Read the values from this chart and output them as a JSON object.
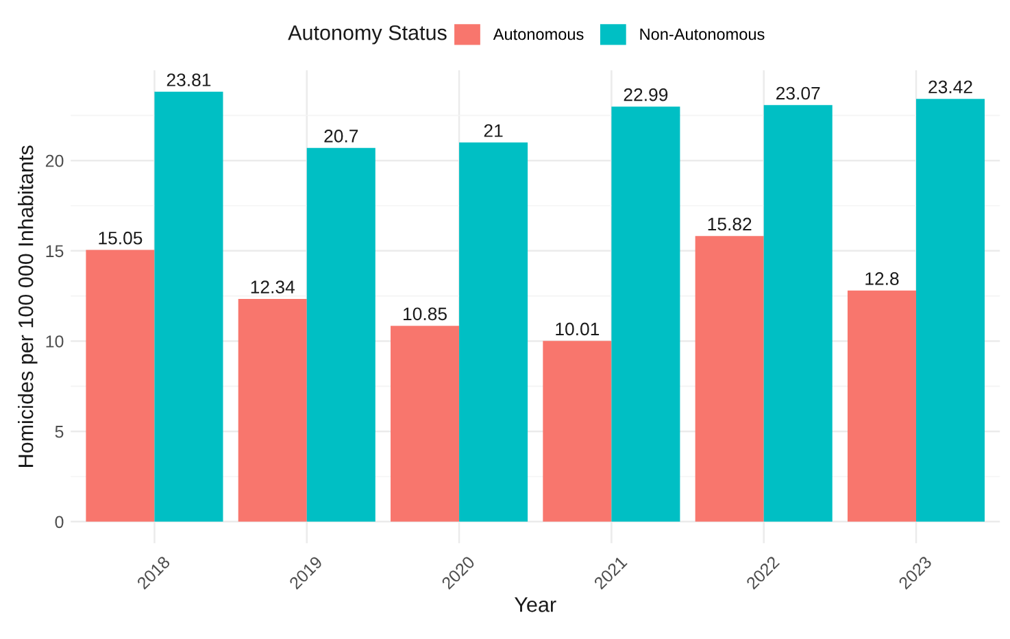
{
  "chart_data": {
    "type": "bar",
    "xlabel": "Year",
    "ylabel": "Homicides per 100 000 Inhabitants",
    "legend_title": "Autonomy Status",
    "categories": [
      "2018",
      "2019",
      "2020",
      "2021",
      "2022",
      "2023"
    ],
    "series": [
      {
        "name": "Autonomous",
        "color": "#f8766d",
        "values": [
          15.05,
          12.34,
          10.85,
          10.01,
          15.82,
          12.8
        ]
      },
      {
        "name": "Non-Autonomous",
        "color": "#00bfc4",
        "values": [
          23.81,
          20.7,
          21,
          22.99,
          23.07,
          23.42
        ]
      }
    ],
    "ylim": [
      -1.19,
      25.0
    ],
    "yticks": [
      0,
      {
        "value": 2.5,
        "label": null
      },
      5,
      {
        "value": 7.5,
        "label": null
      },
      10,
      {
        "value": 12.5,
        "label": null
      },
      15,
      {
        "value": 17.5,
        "label": null
      },
      20,
      {
        "value": 22.5,
        "label": null
      }
    ],
    "data_labels": true,
    "grid": true,
    "legend": "top"
  }
}
